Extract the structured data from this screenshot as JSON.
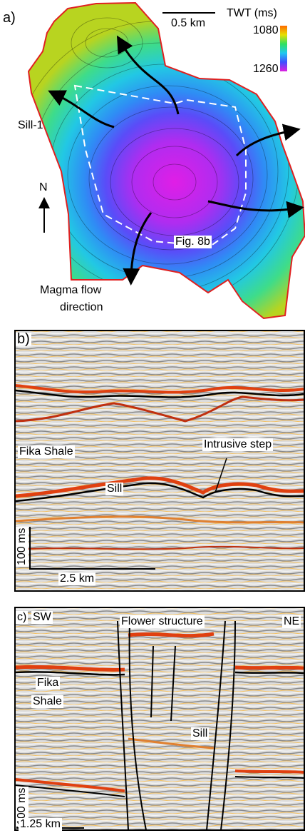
{
  "panel_a": {
    "label": "a)",
    "scale_bar": "0.5 km",
    "colorbar_title": "TWT (ms)",
    "colorbar_top": "1080",
    "colorbar_bottom": "1260",
    "sill_name": "Sill-1",
    "north": "N",
    "figure_ref": "Fig. 8b",
    "flow_label": [
      "Magma flow",
      "direction"
    ]
  },
  "panel_b": {
    "label": "b)",
    "unit": "Fika Shale",
    "intrusive_step": "Intrusive step",
    "sill": "Sill",
    "vertical_scale": "100 ms",
    "horizontal_scale": "2.5 km"
  },
  "panel_c": {
    "label": "c)",
    "left_direction": "SW",
    "title": "Flower structure",
    "right_direction": "NE",
    "unit": [
      "Fika",
      "Shale"
    ],
    "sill": "Sill",
    "vertical_scale": "100 ms",
    "horizontal_scale": "1.25 km"
  }
}
